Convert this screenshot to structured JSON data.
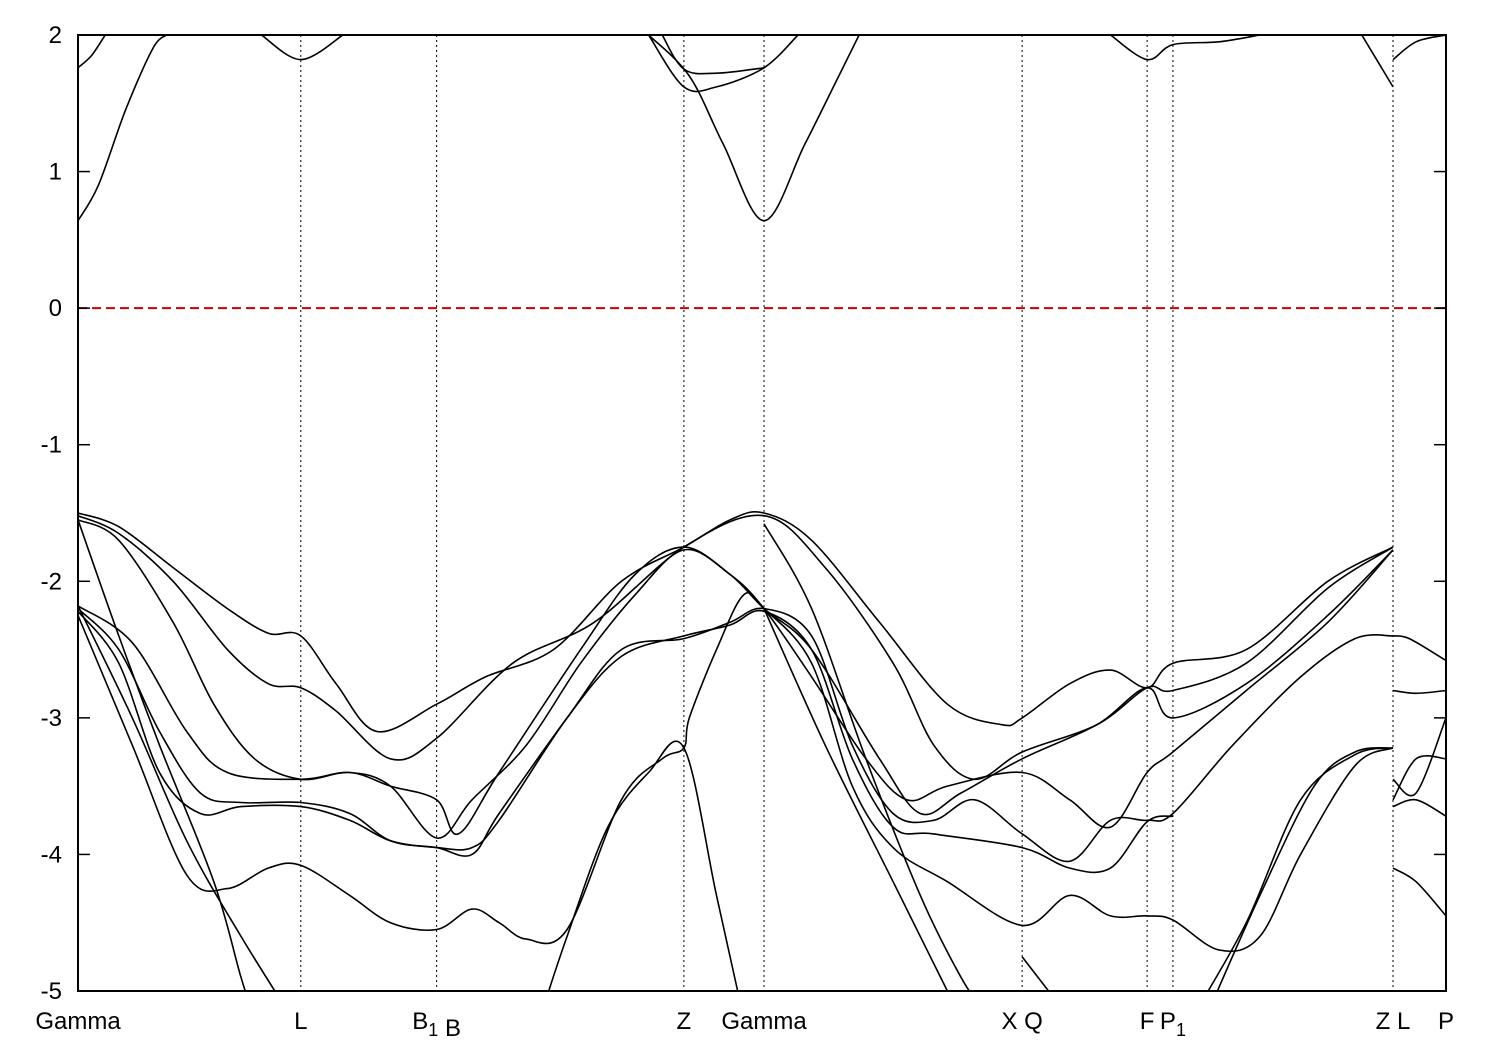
{
  "chart_data": {
    "type": "line",
    "title": "",
    "xlabel": "",
    "ylabel": "",
    "ylim": [
      -5,
      2
    ],
    "y_ticks": [
      -5,
      -4,
      -3,
      -2,
      -1,
      0,
      1,
      2
    ],
    "kpoints": [
      {
        "label": "Gamma",
        "x": 0.0
      },
      {
        "label": "L",
        "x": 1.64
      },
      {
        "label": "B",
        "sub": "1",
        "x": 2.64
      },
      {
        "label": "B",
        "x": 2.64
      },
      {
        "label": "Z",
        "x": 4.46
      },
      {
        "label": "Gamma",
        "x": 5.05
      },
      {
        "label": "X",
        "x": 6.95
      },
      {
        "label": "Q",
        "x": 6.95
      },
      {
        "label": "F",
        "x": 7.87
      },
      {
        "label": "P",
        "sub": "1",
        "x": 8.06
      },
      {
        "label": "Z",
        "x": 9.68
      },
      {
        "label": "L",
        "x": 9.68
      },
      {
        "label": "P",
        "x": 10.07
      }
    ],
    "xlim": [
      0,
      10.07
    ],
    "fermi_level": {
      "y": 0,
      "color": "#cc0000"
    },
    "grid": "vertical dotted lines at k-points",
    "series": [
      {
        "values": [
          [
            0,
            0.64
          ],
          [
            0.15,
            0.9
          ],
          [
            0.35,
            1.45
          ],
          [
            0.55,
            1.9
          ],
          [
            0.65,
            2.0
          ]
        ]
      },
      {
        "values": [
          [
            4.2,
            2.0
          ],
          [
            4.5,
            1.7
          ],
          [
            4.75,
            1.2
          ],
          [
            5.05,
            0.64
          ],
          [
            5.35,
            1.2
          ],
          [
            5.6,
            1.7
          ],
          [
            5.75,
            2.0
          ]
        ]
      },
      {
        "values": [
          [
            0,
            1.76
          ],
          [
            0.1,
            1.85
          ],
          [
            0.2,
            2.0
          ]
        ]
      },
      {
        "values": [
          [
            1.35,
            2.0
          ],
          [
            1.64,
            1.82
          ],
          [
            1.95,
            2.0
          ]
        ]
      },
      {
        "values": [
          [
            4.2,
            2.0
          ],
          [
            4.46,
            1.62
          ],
          [
            4.7,
            1.62
          ],
          [
            5.05,
            1.76
          ],
          [
            5.3,
            2.0
          ]
        ]
      },
      {
        "values": [
          [
            4.3,
            2.0
          ],
          [
            4.46,
            1.75
          ],
          [
            4.7,
            1.72
          ],
          [
            5.05,
            1.76
          ]
        ]
      },
      {
        "values": [
          [
            7.6,
            2.0
          ],
          [
            7.87,
            1.82
          ],
          [
            8.06,
            1.93
          ],
          [
            8.4,
            1.95
          ],
          [
            8.7,
            2.0
          ]
        ]
      },
      {
        "values": [
          [
            9.45,
            2.0
          ],
          [
            9.68,
            1.62
          ]
        ]
      },
      {
        "values": [
          [
            9.68,
            1.82
          ],
          [
            9.85,
            1.95
          ],
          [
            10.07,
            2.0
          ]
        ]
      },
      {
        "values": [
          [
            0,
            -1.5
          ],
          [
            0.3,
            -1.6
          ],
          [
            0.7,
            -1.9
          ],
          [
            1.1,
            -2.2
          ],
          [
            1.4,
            -2.38
          ],
          [
            1.64,
            -2.4
          ],
          [
            1.9,
            -2.75
          ],
          [
            2.2,
            -3.1
          ],
          [
            2.64,
            -2.9
          ],
          [
            3.0,
            -2.7
          ],
          [
            3.5,
            -2.5
          ],
          [
            4.0,
            -2.0
          ],
          [
            4.46,
            -1.75
          ],
          [
            4.8,
            -1.55
          ],
          [
            5.05,
            -1.5
          ],
          [
            5.4,
            -1.7
          ],
          [
            5.9,
            -2.3
          ],
          [
            6.4,
            -2.9
          ],
          [
            6.8,
            -3.05
          ],
          [
            6.95,
            -3.0
          ],
          [
            7.3,
            -2.75
          ],
          [
            7.6,
            -2.65
          ],
          [
            7.87,
            -2.78
          ],
          [
            8.06,
            -2.6
          ],
          [
            8.6,
            -2.5
          ],
          [
            9.2,
            -2.0
          ],
          [
            9.68,
            -1.75
          ]
        ]
      },
      {
        "values": [
          [
            0,
            -1.52
          ],
          [
            0.3,
            -1.65
          ],
          [
            0.7,
            -2.0
          ],
          [
            1.1,
            -2.5
          ],
          [
            1.4,
            -2.75
          ],
          [
            1.64,
            -2.78
          ],
          [
            1.9,
            -2.95
          ],
          [
            2.3,
            -3.3
          ],
          [
            2.64,
            -3.15
          ],
          [
            3.2,
            -2.6
          ],
          [
            3.8,
            -2.3
          ],
          [
            4.46,
            -1.75
          ],
          [
            5.05,
            -1.52
          ],
          [
            5.5,
            -1.9
          ],
          [
            6.0,
            -2.6
          ],
          [
            6.3,
            -3.2
          ],
          [
            6.6,
            -3.45
          ],
          [
            6.95,
            -3.25
          ],
          [
            7.5,
            -3.05
          ],
          [
            7.87,
            -2.78
          ],
          [
            8.06,
            -2.8
          ],
          [
            8.6,
            -2.6
          ],
          [
            9.2,
            -2.05
          ],
          [
            9.68,
            -1.75
          ]
        ]
      },
      {
        "values": [
          [
            0,
            -1.55
          ],
          [
            0.3,
            -1.7
          ],
          [
            0.7,
            -2.3
          ],
          [
            1.0,
            -2.9
          ],
          [
            1.3,
            -3.3
          ],
          [
            1.64,
            -3.45
          ],
          [
            2.0,
            -3.4
          ],
          [
            2.3,
            -3.5
          ],
          [
            2.64,
            -3.6
          ],
          [
            2.8,
            -3.85
          ],
          [
            3.1,
            -3.4
          ],
          [
            3.7,
            -2.5
          ],
          [
            4.1,
            -1.95
          ],
          [
            4.46,
            -1.75
          ],
          [
            4.8,
            -1.95
          ],
          [
            5.05,
            -2.2
          ],
          [
            5.4,
            -2.5
          ],
          [
            5.9,
            -3.3
          ],
          [
            6.2,
            -3.7
          ],
          [
            6.5,
            -3.55
          ],
          [
            6.95,
            -3.3
          ],
          [
            7.5,
            -3.05
          ],
          [
            7.87,
            -2.78
          ],
          [
            8.06,
            -3.0
          ],
          [
            8.6,
            -2.75
          ],
          [
            9.2,
            -2.25
          ],
          [
            9.68,
            -1.77
          ]
        ]
      },
      {
        "values": [
          [
            0,
            -2.18
          ],
          [
            0.4,
            -2.45
          ],
          [
            0.8,
            -3.1
          ],
          [
            1.1,
            -3.4
          ],
          [
            1.64,
            -3.45
          ],
          [
            2.0,
            -3.4
          ],
          [
            2.3,
            -3.5
          ],
          [
            2.64,
            -3.88
          ],
          [
            2.9,
            -3.6
          ],
          [
            3.3,
            -3.2
          ],
          [
            3.7,
            -2.6
          ],
          [
            4.1,
            -2.1
          ],
          [
            4.46,
            -1.77
          ],
          [
            4.8,
            -1.95
          ],
          [
            5.05,
            -2.2
          ],
          [
            5.4,
            -2.7
          ],
          [
            5.8,
            -3.3
          ],
          [
            6.1,
            -3.6
          ],
          [
            6.4,
            -3.5
          ],
          [
            6.95,
            -3.4
          ],
          [
            7.3,
            -3.6
          ],
          [
            7.6,
            -3.8
          ],
          [
            7.87,
            -3.4
          ],
          [
            8.06,
            -3.25
          ],
          [
            8.6,
            -2.8
          ],
          [
            9.2,
            -2.3
          ],
          [
            9.68,
            -1.77
          ]
        ]
      },
      {
        "values": [
          [
            0,
            -2.2
          ],
          [
            0.3,
            -2.5
          ],
          [
            0.6,
            -3.1
          ],
          [
            0.9,
            -3.55
          ],
          [
            1.2,
            -3.62
          ],
          [
            1.64,
            -3.62
          ],
          [
            2.0,
            -3.7
          ],
          [
            2.3,
            -3.9
          ],
          [
            2.64,
            -3.95
          ],
          [
            2.9,
            -4.0
          ],
          [
            3.1,
            -3.7
          ],
          [
            3.6,
            -3.0
          ],
          [
            4.0,
            -2.5
          ],
          [
            4.46,
            -2.42
          ],
          [
            4.8,
            -2.3
          ],
          [
            5.05,
            -2.2
          ],
          [
            5.4,
            -2.4
          ],
          [
            5.7,
            -3.2
          ],
          [
            6.0,
            -3.7
          ],
          [
            6.3,
            -3.75
          ],
          [
            6.6,
            -3.6
          ],
          [
            6.95,
            -3.85
          ],
          [
            7.3,
            -4.05
          ],
          [
            7.6,
            -3.75
          ],
          [
            7.87,
            -3.75
          ],
          [
            8.06,
            -3.7
          ],
          [
            8.5,
            -3.2
          ],
          [
            9.0,
            -2.7
          ],
          [
            9.4,
            -2.42
          ],
          [
            9.68,
            -2.4
          ]
        ]
      },
      {
        "values": [
          [
            0,
            -2.22
          ],
          [
            0.3,
            -2.6
          ],
          [
            0.6,
            -3.4
          ],
          [
            0.9,
            -3.7
          ],
          [
            1.2,
            -3.65
          ],
          [
            1.64,
            -3.65
          ],
          [
            2.0,
            -3.75
          ],
          [
            2.3,
            -3.9
          ],
          [
            2.64,
            -3.95
          ],
          [
            2.9,
            -3.95
          ],
          [
            3.1,
            -3.75
          ],
          [
            3.6,
            -3.0
          ],
          [
            4.0,
            -2.55
          ],
          [
            4.46,
            -2.4
          ],
          [
            4.8,
            -2.32
          ],
          [
            5.05,
            -2.22
          ],
          [
            5.4,
            -2.5
          ],
          [
            5.7,
            -3.3
          ],
          [
            6.0,
            -3.8
          ],
          [
            6.3,
            -3.85
          ],
          [
            6.95,
            -3.95
          ],
          [
            7.3,
            -4.1
          ],
          [
            7.6,
            -4.1
          ],
          [
            7.87,
            -3.76
          ],
          [
            8.06,
            -3.72
          ]
        ]
      },
      {
        "values": [
          [
            0,
            -2.25
          ],
          [
            0.4,
            -3.2
          ],
          [
            0.8,
            -4.15
          ],
          [
            1.1,
            -4.25
          ],
          [
            1.4,
            -4.1
          ],
          [
            1.64,
            -4.08
          ],
          [
            2.0,
            -4.3
          ],
          [
            2.3,
            -4.5
          ],
          [
            2.64,
            -4.55
          ],
          [
            2.9,
            -4.4
          ],
          [
            3.1,
            -4.5
          ],
          [
            3.3,
            -4.62
          ],
          [
            3.6,
            -4.55
          ],
          [
            4.0,
            -3.6
          ],
          [
            4.3,
            -3.3
          ],
          [
            4.46,
            -3.22
          ],
          [
            4.5,
            -3.0
          ],
          [
            4.7,
            -2.5
          ],
          [
            4.9,
            -2.1
          ],
          [
            5.05,
            -2.2
          ],
          [
            5.4,
            -2.6
          ],
          [
            5.7,
            -3.5
          ],
          [
            6.0,
            -3.95
          ],
          [
            6.4,
            -4.2
          ],
          [
            6.95,
            -4.52
          ],
          [
            7.3,
            -4.3
          ],
          [
            7.6,
            -4.45
          ],
          [
            7.87,
            -4.45
          ],
          [
            8.06,
            -4.48
          ],
          [
            8.4,
            -4.7
          ],
          [
            8.7,
            -4.6
          ],
          [
            9.0,
            -4.0
          ],
          [
            9.4,
            -3.35
          ],
          [
            9.68,
            -3.22
          ]
        ]
      },
      {
        "values": [
          [
            0,
            -2.18
          ],
          [
            0.4,
            -3.0
          ],
          [
            0.8,
            -3.9
          ],
          [
            1.2,
            -4.6
          ],
          [
            1.64,
            -5.3
          ]
        ]
      },
      {
        "values": [
          [
            0,
            -1.55
          ],
          [
            0.3,
            -2.4
          ],
          [
            0.6,
            -3.2
          ],
          [
            1.0,
            -4.2
          ],
          [
            1.2,
            -4.9
          ],
          [
            1.3,
            -5.2
          ]
        ]
      },
      {
        "values": [
          [
            3.4,
            -5.2
          ],
          [
            3.6,
            -4.6
          ],
          [
            3.9,
            -3.8
          ],
          [
            4.2,
            -3.4
          ],
          [
            4.46,
            -3.22
          ],
          [
            4.7,
            -4.3
          ],
          [
            4.9,
            -5.2
          ]
        ]
      },
      {
        "values": [
          [
            5.05,
            -2.2
          ],
          [
            5.5,
            -3.2
          ],
          [
            6.0,
            -4.2
          ],
          [
            6.3,
            -4.8
          ],
          [
            6.5,
            -5.2
          ]
        ]
      },
      {
        "values": [
          [
            5.05,
            -1.58
          ],
          [
            5.4,
            -2.2
          ],
          [
            5.8,
            -3.3
          ],
          [
            6.2,
            -4.3
          ],
          [
            6.5,
            -4.9
          ],
          [
            6.7,
            -5.2
          ]
        ]
      },
      {
        "values": [
          [
            6.95,
            -4.75
          ],
          [
            7.3,
            -5.2
          ]
        ]
      },
      {
        "values": [
          [
            8.3,
            -5.2
          ],
          [
            8.7,
            -4.3
          ],
          [
            9.1,
            -3.5
          ],
          [
            9.4,
            -3.25
          ],
          [
            9.68,
            -3.22
          ]
        ]
      },
      {
        "values": [
          [
            8.2,
            -5.2
          ],
          [
            8.6,
            -4.5
          ],
          [
            9.0,
            -3.6
          ],
          [
            9.4,
            -3.27
          ],
          [
            9.68,
            -3.22
          ]
        ]
      },
      {
        "values": [
          [
            9.68,
            -2.4
          ],
          [
            9.8,
            -2.42
          ],
          [
            10.07,
            -2.58
          ]
        ]
      },
      {
        "values": [
          [
            9.68,
            -2.8
          ],
          [
            9.85,
            -2.82
          ],
          [
            10.07,
            -2.8
          ]
        ]
      },
      {
        "values": [
          [
            9.68,
            -3.45
          ],
          [
            9.85,
            -3.55
          ],
          [
            10.07,
            -3.0
          ]
        ]
      },
      {
        "values": [
          [
            9.68,
            -3.6
          ],
          [
            9.85,
            -3.3
          ],
          [
            10.07,
            -3.3
          ]
        ]
      },
      {
        "values": [
          [
            9.68,
            -3.65
          ],
          [
            9.85,
            -3.6
          ],
          [
            10.07,
            -3.72
          ]
        ]
      },
      {
        "values": [
          [
            9.68,
            -4.1
          ],
          [
            9.85,
            -4.2
          ],
          [
            10.07,
            -4.45
          ]
        ]
      }
    ]
  }
}
